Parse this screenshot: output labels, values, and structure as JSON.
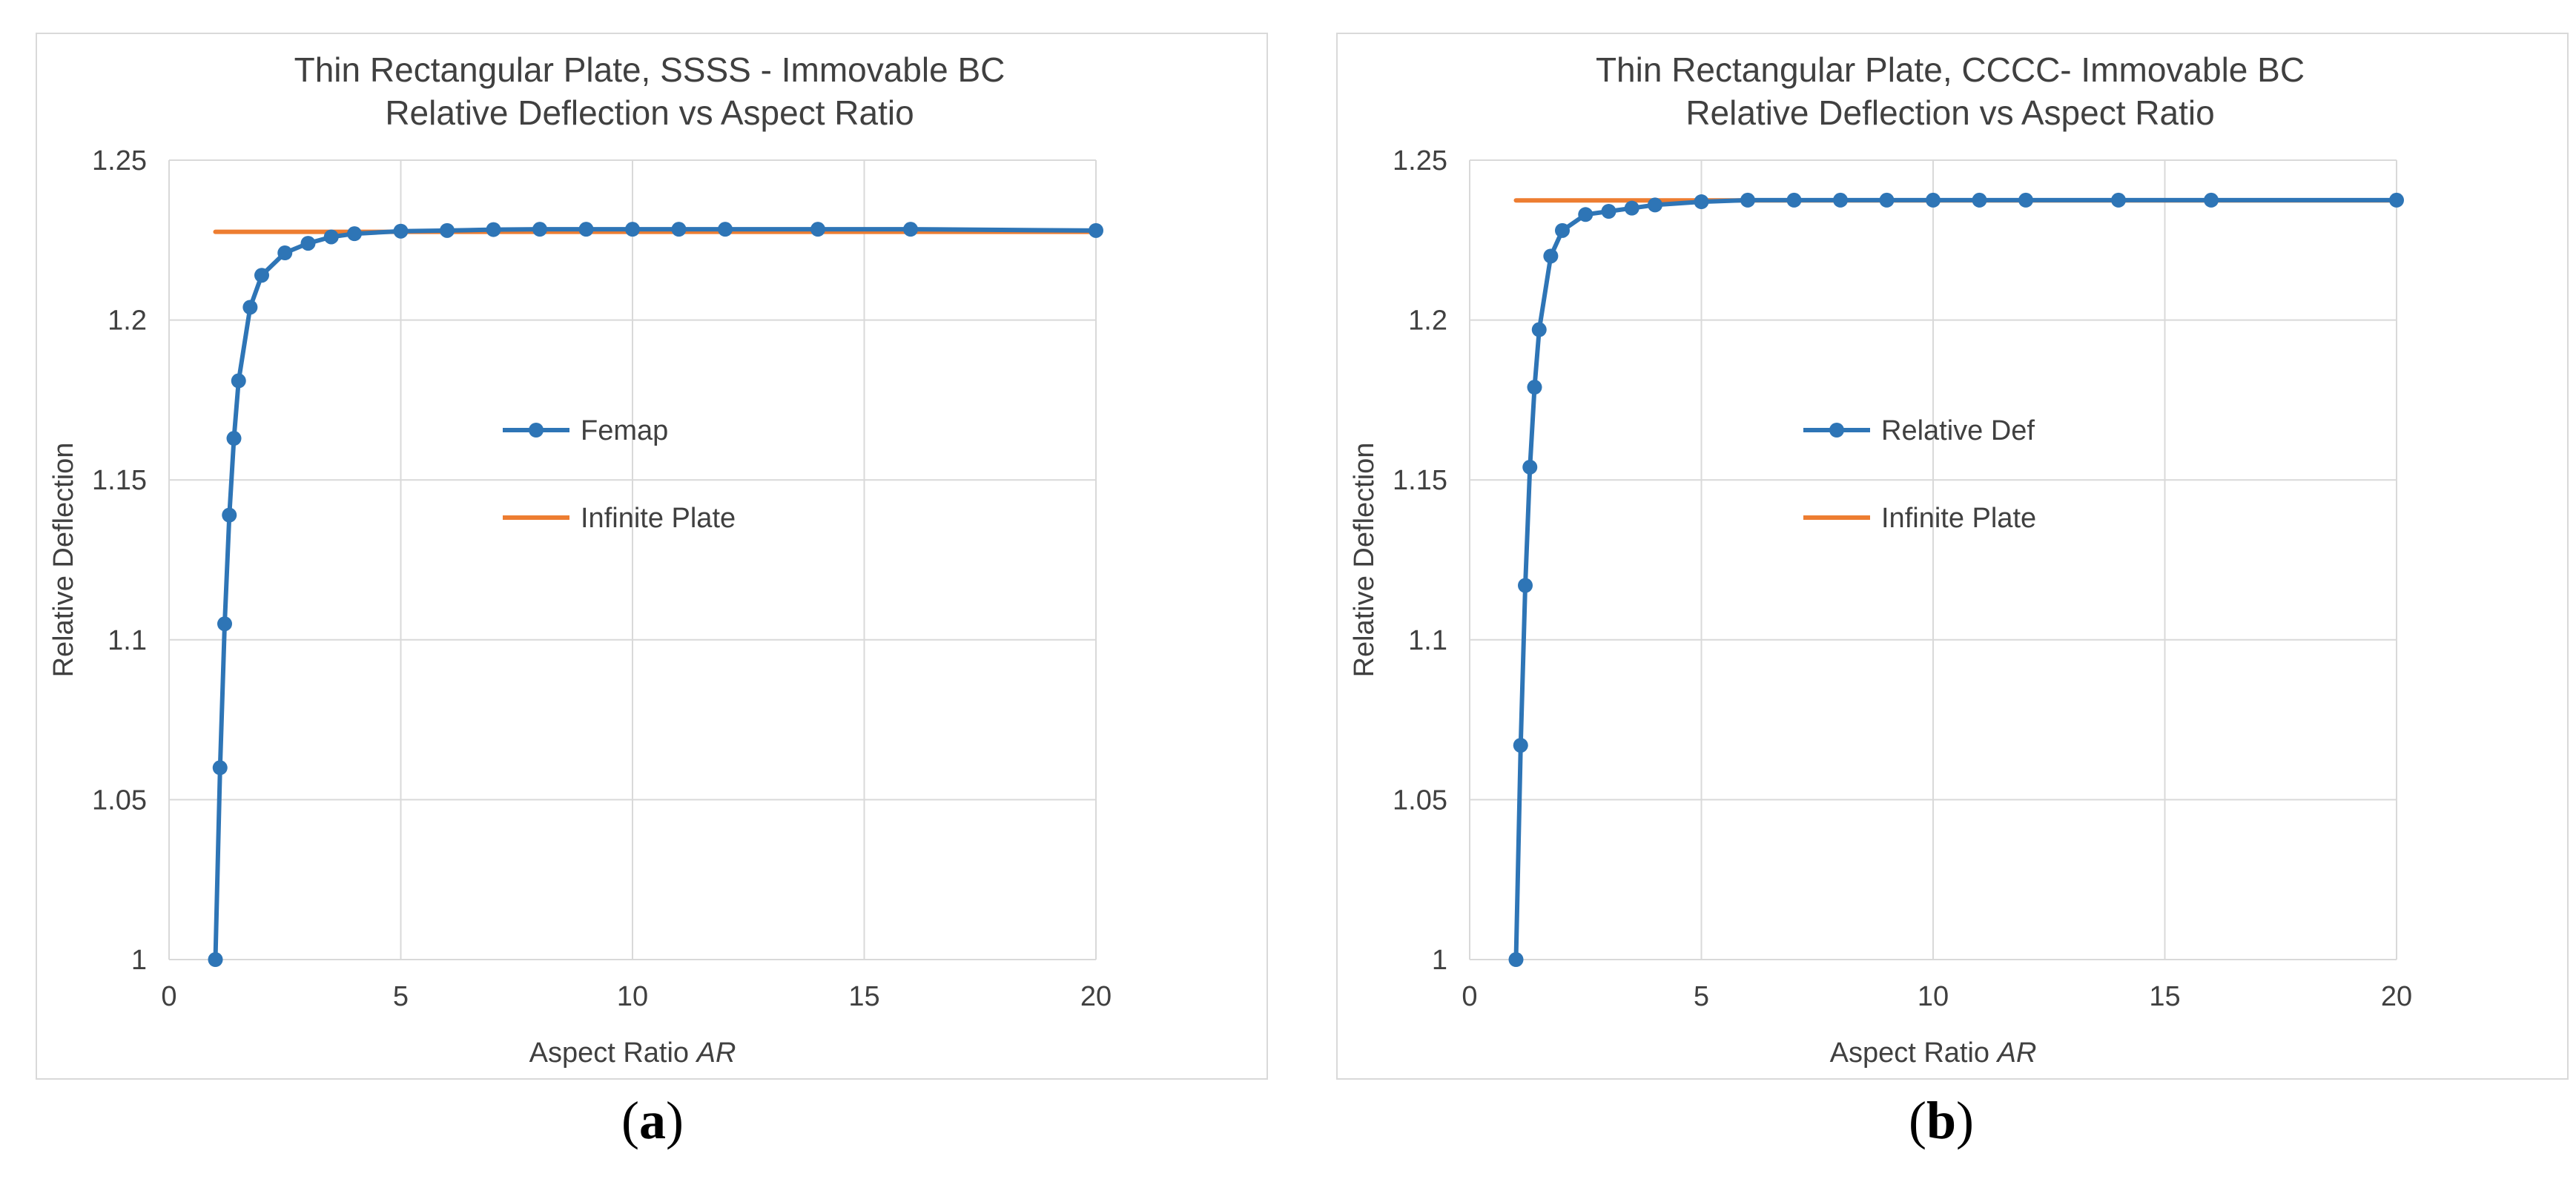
{
  "chart_data": [
    {
      "type": "line",
      "title": "Thin Rectangular Plate, SSSS - Immovable BC",
      "subtitle": "Relative Deflection vs Aspect Ratio",
      "xlabel": "Aspect Ratio",
      "xlabel_italic": "AR",
      "ylabel": "Relative Deflection",
      "xlim": [
        0,
        20
      ],
      "ylim": [
        1,
        1.25
      ],
      "xticks": [
        "0",
        "5",
        "10",
        "15",
        "20"
      ],
      "yticks": [
        "1",
        "1.05",
        "1.1",
        "1.15",
        "1.2",
        "1.25"
      ],
      "legend_position": "center",
      "series": [
        {
          "name": "Femap",
          "color": "#2e75b6",
          "markers": true,
          "x": [
            1,
            1.1,
            1.2,
            1.3,
            1.4,
            1.5,
            1.75,
            2,
            2.5,
            3,
            3.5,
            4,
            5,
            6,
            7,
            8,
            9,
            10,
            11,
            12,
            14,
            16,
            20
          ],
          "y": [
            1.0,
            1.06,
            1.105,
            1.139,
            1.163,
            1.181,
            1.204,
            1.214,
            1.221,
            1.224,
            1.226,
            1.227,
            1.2278,
            1.228,
            1.2283,
            1.2284,
            1.2284,
            1.2284,
            1.2284,
            1.2284,
            1.2284,
            1.2284,
            1.228
          ]
        },
        {
          "name": "Infinite Plate",
          "color": "#ed7d31",
          "markers": false,
          "x": [
            1,
            20
          ],
          "y": [
            1.2276,
            1.2276
          ]
        }
      ]
    },
    {
      "type": "line",
      "title": "Thin Rectangular Plate, CCCC- Immovable BC",
      "subtitle": "Relative Deflection vs Aspect Ratio",
      "xlabel": "Aspect Ratio",
      "xlabel_italic": "AR",
      "ylabel": "Relative Deflection",
      "xlim": [
        0,
        20
      ],
      "ylim": [
        1,
        1.25
      ],
      "xticks": [
        "0",
        "5",
        "10",
        "15",
        "20"
      ],
      "yticks": [
        "1",
        "1.05",
        "1.1",
        "1.15",
        "1.2",
        "1.25"
      ],
      "legend_position": "center",
      "series": [
        {
          "name": "Relative Def",
          "color": "#2e75b6",
          "markers": true,
          "x": [
            1,
            1.1,
            1.2,
            1.3,
            1.4,
            1.5,
            1.75,
            2,
            2.5,
            3,
            3.5,
            4,
            5,
            6,
            7,
            8,
            9,
            10,
            11,
            12,
            14,
            16,
            20
          ],
          "y": [
            1.0,
            1.067,
            1.117,
            1.154,
            1.179,
            1.197,
            1.22,
            1.228,
            1.233,
            1.234,
            1.235,
            1.236,
            1.237,
            1.2375,
            1.2375,
            1.2375,
            1.2375,
            1.2375,
            1.2375,
            1.2375,
            1.2375,
            1.2375,
            1.2375
          ]
        },
        {
          "name": "Infinite Plate",
          "color": "#ed7d31",
          "markers": false,
          "x": [
            1,
            20
          ],
          "y": [
            1.2374,
            1.2374
          ]
        }
      ]
    }
  ],
  "captions": [
    {
      "open": "(",
      "letter": "a",
      "close": ")"
    },
    {
      "open": "(",
      "letter": "b",
      "close": ")"
    }
  ]
}
